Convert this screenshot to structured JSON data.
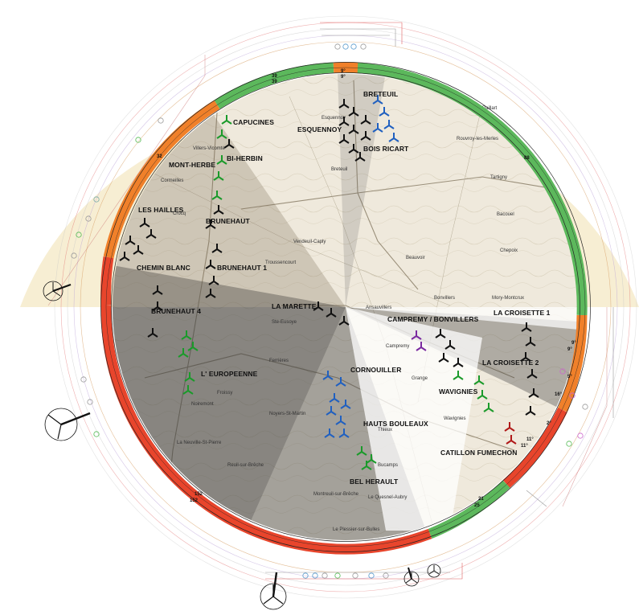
{
  "wind_farms": [
    {
      "id": "breteuil",
      "label": "BRETEUIL",
      "color": "#1a1a1a"
    },
    {
      "id": "esquennoy",
      "label": "ESQUENNOY",
      "color": "#1a1a1a"
    },
    {
      "id": "bois-ricart",
      "label": "BOIS RICART",
      "color": "#1a1a1a"
    },
    {
      "id": "capucines",
      "label": "CAPUCINES",
      "color": "#1a1a1a"
    },
    {
      "id": "bi-herbin",
      "label": "BI-HERBIN",
      "color": "#1a1a1a"
    },
    {
      "id": "mont-herbe",
      "label": "MONT-HERBE",
      "color": "#1a1a1a"
    },
    {
      "id": "les-hailles",
      "label": "LES HAILLES",
      "color": "#1a1a1a"
    },
    {
      "id": "brunehaut",
      "label": "BRUNEHAUT",
      "color": "#1a1a1a"
    },
    {
      "id": "chemin-blanc",
      "label": "CHEMIN BLANC",
      "color": "#1a1a1a"
    },
    {
      "id": "brunehaut-1",
      "label": "BRUNEHAUT 1",
      "color": "#1a1a1a"
    },
    {
      "id": "brunehaut-4",
      "label": "BRUNEHAUT 4",
      "color": "#1a1a1a"
    },
    {
      "id": "la-marette",
      "label": "LA MARETTE",
      "color": "#1a1a1a"
    },
    {
      "id": "campremy-bonvillers",
      "label": "CAMPREMY / BONVILLERS",
      "color": "#1a1a1a"
    },
    {
      "id": "la-croisette-1",
      "label": "LA CROISETTE 1",
      "color": "#1a1a1a"
    },
    {
      "id": "la-croisette-2",
      "label": "LA CROISETTE 2",
      "color": "#1a1a1a"
    },
    {
      "id": "l-europeenne",
      "label": "L' EUROPEENNE",
      "color": "#1a1a1a"
    },
    {
      "id": "cornouiller",
      "label": "CORNOUILLER",
      "color": "#1a1a1a"
    },
    {
      "id": "wavignies",
      "label": "WAVIGNIES",
      "color": "#1a1a1a"
    },
    {
      "id": "hauts-bouleaux",
      "label": "HAUTS BOULEAUX",
      "color": "#1a1a1a"
    },
    {
      "id": "catillon-fumechon",
      "label": "CATILLON FUMECHON",
      "color": "#1a1a1a"
    },
    {
      "id": "bel-herault",
      "label": "BEL HERAULT",
      "color": "#1a1a1a"
    }
  ],
  "towns": [
    {
      "id": "breteuil-town",
      "label": "Breteuil"
    },
    {
      "id": "tartigny",
      "label": "Tartigny"
    },
    {
      "id": "rouvroy",
      "label": "Rouvroy-les-Merles"
    },
    {
      "id": "paillart",
      "label": "Paillart"
    },
    {
      "id": "bacouel",
      "label": "Bacouel"
    },
    {
      "id": "chepoix",
      "label": "Chepoix"
    },
    {
      "id": "beauvoir",
      "label": "Beauvoir"
    },
    {
      "id": "vendeuil",
      "label": "Vendeuil-Caply"
    },
    {
      "id": "troussencourt",
      "label": "Troussencourt"
    },
    {
      "id": "ansauvillers",
      "label": "Ansauvillers"
    },
    {
      "id": "bonvillers",
      "label": "Bonvillers"
    },
    {
      "id": "mory",
      "label": "Mory-Montcrux"
    },
    {
      "id": "campremy",
      "label": "Campremy"
    },
    {
      "id": "wavignies-town",
      "label": "Wavignies"
    },
    {
      "id": "froissy",
      "label": "Froissy"
    },
    {
      "id": "noiremont",
      "label": "Noiremont"
    },
    {
      "id": "novers",
      "label": "Noyers-St-Martin"
    },
    {
      "id": "reuil",
      "label": "Reuil-sur-Brêche"
    },
    {
      "id": "la-neuville",
      "label": "La Neuville-St-Pierre"
    },
    {
      "id": "montreuil",
      "label": "Montreuil-sur-Brêche"
    },
    {
      "id": "le-quesnel",
      "label": "Le Quesnel-Aubry"
    },
    {
      "id": "le-plessier",
      "label": "Le Plessier-sur-Bulles"
    },
    {
      "id": "bucamps",
      "label": "Bucamps"
    },
    {
      "id": "tieux",
      "label": "Thieux"
    },
    {
      "id": "grange",
      "label": "Grange"
    },
    {
      "id": "ferrieres",
      "label": "Ferrières"
    },
    {
      "id": "esquennoy-town",
      "label": "Esquennoy"
    },
    {
      "id": "villers",
      "label": "Villers-Vicomte"
    },
    {
      "id": "crocq",
      "label": "Crocq"
    },
    {
      "id": "cornelle",
      "label": "Cormeilles"
    },
    {
      "id": "sainte-eusoye",
      "label": "Ste-Eusoye"
    }
  ],
  "ring_labels": [
    {
      "id": "top-a",
      "label": "9°"
    },
    {
      "id": "top-b",
      "label": "9°"
    },
    {
      "id": "green-top",
      "label": "39"
    },
    {
      "id": "green-top2",
      "label": "39"
    },
    {
      "id": "green-right",
      "label": "88"
    },
    {
      "id": "orange-left",
      "label": "32"
    },
    {
      "id": "right-9a",
      "label": "9°"
    },
    {
      "id": "right-9b",
      "label": "9°"
    },
    {
      "id": "right-16",
      "label": "16°"
    },
    {
      "id": "right-5",
      "label": "5°"
    },
    {
      "id": "right-2",
      "label": "2°"
    },
    {
      "id": "right-11a",
      "label": "11°"
    },
    {
      "id": "right-11b",
      "label": "11°"
    },
    {
      "id": "green-br-a",
      "label": "21"
    },
    {
      "id": "green-br-b",
      "label": "25"
    },
    {
      "id": "red-bl-a",
      "label": "152"
    },
    {
      "id": "red-bl-b",
      "label": "152"
    }
  ],
  "colors": {
    "green": "#5cb85c",
    "orange": "#f0802a",
    "red": "#e8452c",
    "beige": "#f7eed3",
    "map_light": "#efe9dc",
    "shadow_dark": "#6e6e6e",
    "turbine_black": "#111111",
    "turbine_green": "#1a9a2a",
    "turbine_blue": "#2060c0",
    "turbine_purple": "#7a2aa0",
    "turbine_red": "#b01818"
  },
  "icons": {
    "turbine": "wind-turbine-icon",
    "rotor": "rotor-icon"
  }
}
